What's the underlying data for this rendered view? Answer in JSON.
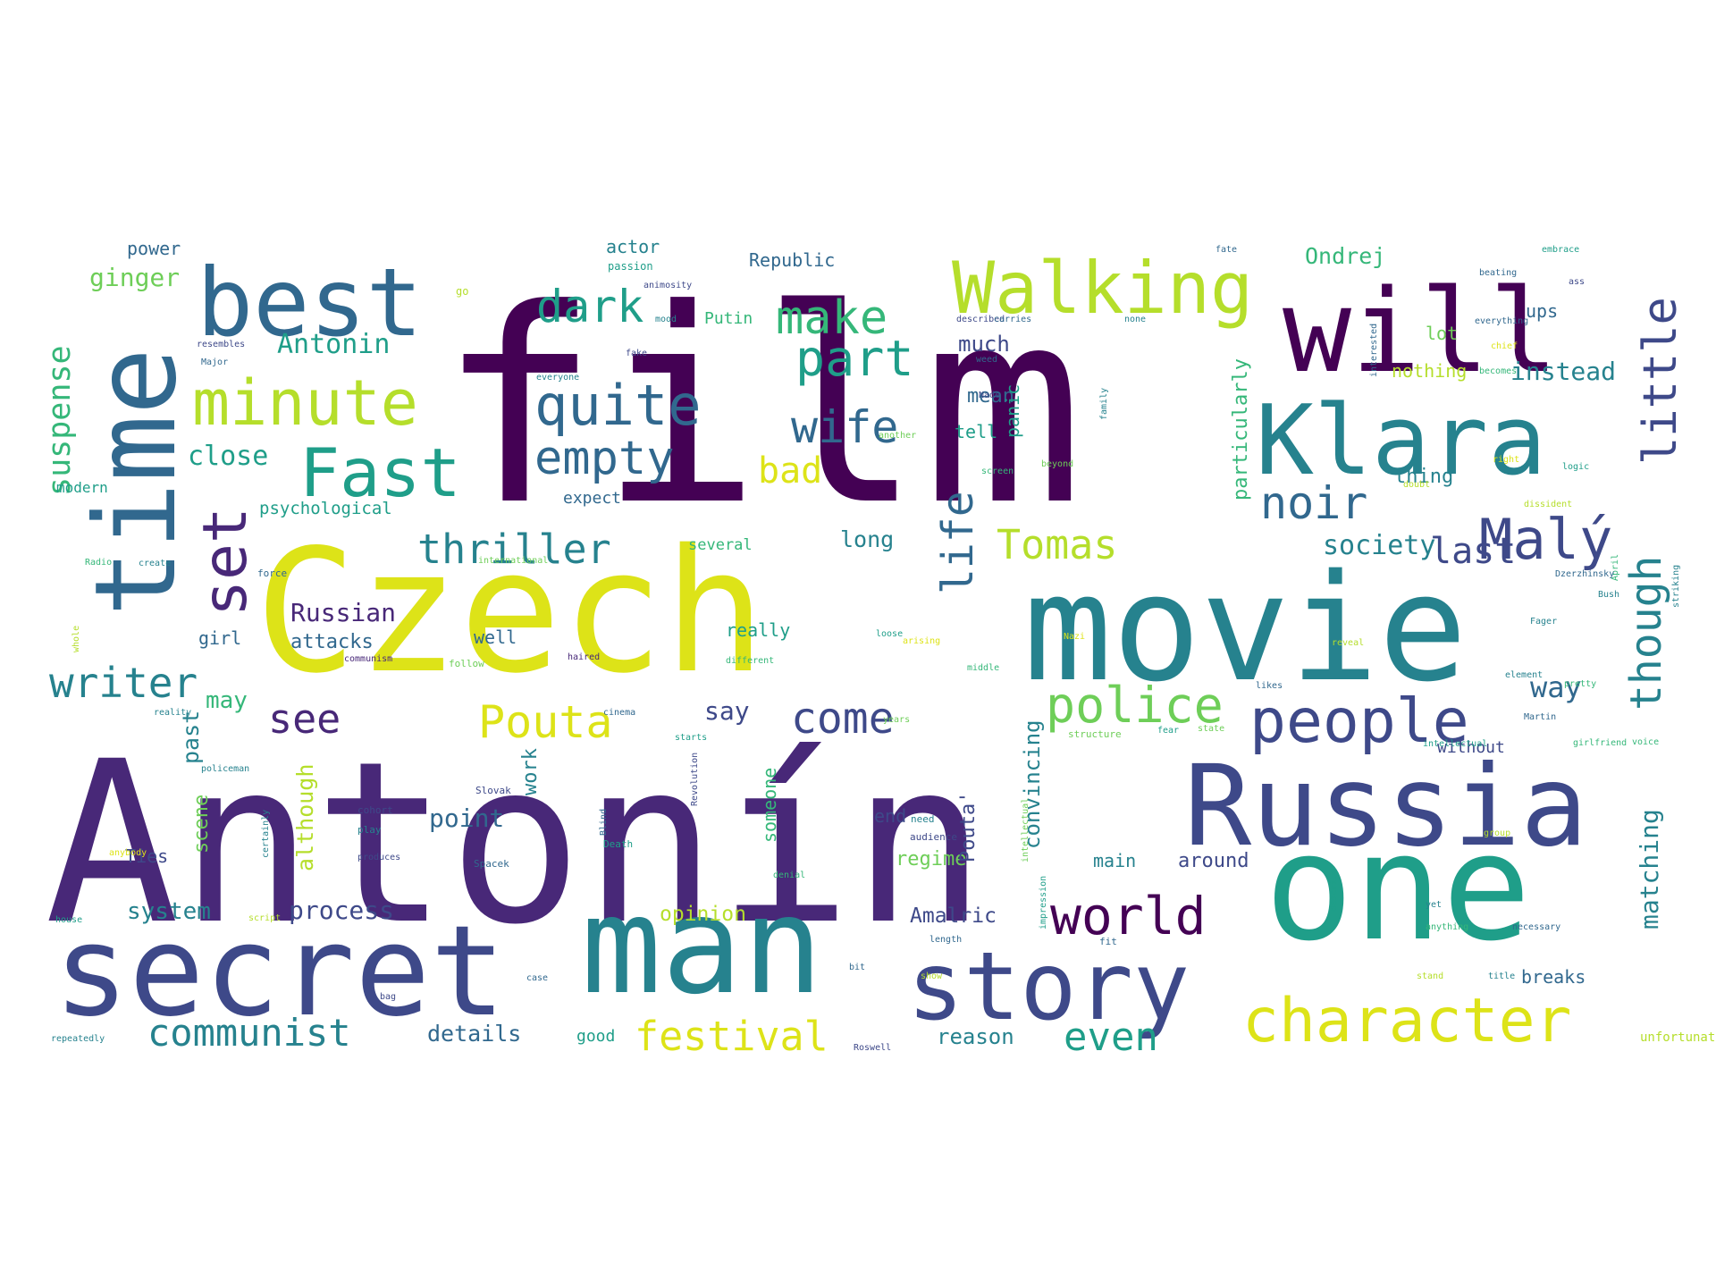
{
  "colors": {
    "background": "#ffffff",
    "palette": [
      "#440154",
      "#482878",
      "#3e4989",
      "#31688e",
      "#26828e",
      "#1f9e89",
      "#35b779",
      "#6ece58",
      "#b5de2b",
      "#dde318"
    ]
  },
  "words": [
    {
      "text": "film",
      "c": 0
    },
    {
      "text": "Antonín",
      "c": 1
    },
    {
      "text": "Czech",
      "c": 9
    },
    {
      "text": "movie",
      "c": 4
    },
    {
      "text": "man",
      "c": 4
    },
    {
      "text": "secret",
      "c": 2
    },
    {
      "text": "one",
      "c": 5
    },
    {
      "text": "Russia",
      "c": 2
    },
    {
      "text": "time",
      "c": 3
    },
    {
      "text": "will",
      "c": 0
    },
    {
      "text": "Klara",
      "c": 4
    },
    {
      "text": "best",
      "c": 3
    },
    {
      "text": "story",
      "c": 2
    },
    {
      "text": "character",
      "c": 9
    },
    {
      "text": "people",
      "c": 2
    },
    {
      "text": "Walking",
      "c": 8
    },
    {
      "text": "minute",
      "c": 8
    },
    {
      "text": "Fast",
      "c": 5
    },
    {
      "text": "Malý",
      "c": 2
    },
    {
      "text": "set",
      "c": 1
    },
    {
      "text": "police",
      "c": 7
    },
    {
      "text": "world",
      "c": 0
    },
    {
      "text": "quite",
      "c": 3
    },
    {
      "text": "empty",
      "c": 3
    },
    {
      "text": "part",
      "c": 5
    },
    {
      "text": "wife",
      "c": 3
    },
    {
      "text": "make",
      "c": 6
    },
    {
      "text": "dark",
      "c": 5
    },
    {
      "text": "noir",
      "c": 3
    },
    {
      "text": "little",
      "c": 2
    },
    {
      "text": "though",
      "c": 4
    },
    {
      "text": "thriller",
      "c": 4
    },
    {
      "text": "Tomas",
      "c": 8
    },
    {
      "text": "life",
      "c": 3
    },
    {
      "text": "Pouta",
      "c": 9
    },
    {
      "text": "writer",
      "c": 4
    },
    {
      "text": "come",
      "c": 2
    },
    {
      "text": "see",
      "c": 1
    },
    {
      "text": "festival",
      "c": 9
    },
    {
      "text": "communist",
      "c": 4
    },
    {
      "text": "even",
      "c": 5
    },
    {
      "text": "suspense",
      "c": 6
    },
    {
      "text": "last",
      "c": 2
    },
    {
      "text": "bad",
      "c": 9
    },
    {
      "text": "society",
      "c": 4
    },
    {
      "text": "Antonin",
      "c": 5
    },
    {
      "text": "ginger",
      "c": 7
    },
    {
      "text": "close",
      "c": 5
    },
    {
      "text": "Russian",
      "c": 1
    },
    {
      "text": "attacks",
      "c": 3
    },
    {
      "text": "process",
      "c": 2
    },
    {
      "text": "system",
      "c": 4
    },
    {
      "text": "details",
      "c": 3
    },
    {
      "text": "reason",
      "c": 4
    },
    {
      "text": "Amalric",
      "c": 2
    },
    {
      "text": "breaks",
      "c": 3
    },
    {
      "text": "matching",
      "c": 4
    },
    {
      "text": "convincing",
      "c": 4
    },
    {
      "text": "opinion",
      "c": 8
    },
    {
      "text": "instead",
      "c": 4
    },
    {
      "text": "Ondrej",
      "c": 6
    },
    {
      "text": "point",
      "c": 3
    },
    {
      "text": "say",
      "c": 2
    },
    {
      "text": "way",
      "c": 3
    },
    {
      "text": "Republic",
      "c": 3
    },
    {
      "text": "actor",
      "c": 4
    },
    {
      "text": "psychological",
      "c": 5
    },
    {
      "text": "power",
      "c": 3
    },
    {
      "text": "long",
      "c": 4
    },
    {
      "text": "much",
      "c": 2
    },
    {
      "text": "mean",
      "c": 3
    },
    {
      "text": "particularly",
      "c": 6
    },
    {
      "text": "modern",
      "c": 5
    },
    {
      "text": "expect",
      "c": 3
    },
    {
      "text": "several",
      "c": 6
    },
    {
      "text": "really",
      "c": 5
    },
    {
      "text": "girl",
      "c": 3
    },
    {
      "text": "may",
      "c": 6
    },
    {
      "text": "past",
      "c": 4
    },
    {
      "text": "scene",
      "c": 7
    },
    {
      "text": "although",
      "c": 8
    },
    {
      "text": "Ties",
      "c": 2
    },
    {
      "text": "end",
      "c": 2
    },
    {
      "text": "regime",
      "c": 7
    },
    {
      "text": "someone",
      "c": 6
    },
    {
      "text": "Pouta'",
      "c": 2
    },
    {
      "text": "main",
      "c": 4
    },
    {
      "text": "around",
      "c": 2
    },
    {
      "text": "lot",
      "c": 7
    },
    {
      "text": "ups",
      "c": 3
    },
    {
      "text": "nothing",
      "c": 8
    },
    {
      "text": "panic",
      "c": 5
    },
    {
      "text": "tell",
      "c": 5
    },
    {
      "text": "thing",
      "c": 4
    },
    {
      "text": "well",
      "c": 3
    },
    {
      "text": "good",
      "c": 5
    },
    {
      "text": "without",
      "c": 2
    },
    {
      "text": "Putin",
      "c": 6
    },
    {
      "text": "work",
      "c": 4
    },
    {
      "text": "structure",
      "c": 7
    },
    {
      "text": "go",
      "c": 8
    },
    {
      "text": "passion",
      "c": 5
    },
    {
      "text": "resembles",
      "c": 2
    },
    {
      "text": "Major",
      "c": 3
    },
    {
      "text": "everyone",
      "c": 4
    },
    {
      "text": "Radio",
      "c": 6
    },
    {
      "text": "create",
      "c": 4
    },
    {
      "text": "force",
      "c": 3
    },
    {
      "text": "communism",
      "c": 1
    },
    {
      "text": "haired",
      "c": 1
    },
    {
      "text": "follow",
      "c": 7
    },
    {
      "text": "different",
      "c": 6
    },
    {
      "text": "cinema",
      "c": 3
    },
    {
      "text": "starts",
      "c": 5
    },
    {
      "text": "Slovak",
      "c": 2
    },
    {
      "text": "cohort",
      "c": 2
    },
    {
      "text": "play",
      "c": 4
    },
    {
      "text": "produces",
      "c": 2
    },
    {
      "text": "Spacek",
      "c": 3
    },
    {
      "text": "Death",
      "c": 5
    },
    {
      "text": "Blind",
      "c": 3
    },
    {
      "text": "Revolution",
      "c": 2
    },
    {
      "text": "denial",
      "c": 6
    },
    {
      "text": "need",
      "c": 4
    },
    {
      "text": "audience",
      "c": 2
    },
    {
      "text": "certainly",
      "c": 4
    },
    {
      "text": "house",
      "c": 5
    },
    {
      "text": "stand",
      "c": 8
    },
    {
      "text": "repeatedly",
      "c": 4
    },
    {
      "text": "anybody",
      "c": 9
    },
    {
      "text": "script",
      "c": 8
    },
    {
      "text": "show",
      "c": 8
    },
    {
      "text": "bag",
      "c": 2
    },
    {
      "text": "bit",
      "c": 3
    },
    {
      "text": "case",
      "c": 3
    },
    {
      "text": "length",
      "c": 3
    },
    {
      "text": "impression",
      "c": 5
    },
    {
      "text": "fit",
      "c": 3
    },
    {
      "text": "title",
      "c": 4
    },
    {
      "text": "necessary",
      "c": 3
    },
    {
      "text": "describe",
      "c": 5
    },
    {
      "text": "anything",
      "c": 6
    },
    {
      "text": "unfortunately",
      "c": 8
    },
    {
      "text": "yet",
      "c": 4
    },
    {
      "text": "group",
      "c": 8
    },
    {
      "text": "voice",
      "c": 6
    },
    {
      "text": "Martin",
      "c": 3
    },
    {
      "text": "girlfriend",
      "c": 6
    },
    {
      "text": "intellectual",
      "c": 5
    },
    {
      "text": "element",
      "c": 4
    },
    {
      "text": "striking",
      "c": 4
    },
    {
      "text": "pretty",
      "c": 6
    },
    {
      "text": "Fager",
      "c": 4
    },
    {
      "text": "Bush",
      "c": 4
    },
    {
      "text": "April",
      "c": 6
    },
    {
      "text": "Dzerzhinsky",
      "c": 3
    },
    {
      "text": "dissident",
      "c": 8
    },
    {
      "text": "right",
      "c": 9
    },
    {
      "text": "logic",
      "c": 5
    },
    {
      "text": "becomes",
      "c": 6
    },
    {
      "text": "interested",
      "c": 3
    },
    {
      "text": "doubt",
      "c": 8
    },
    {
      "text": "family",
      "c": 4
    },
    {
      "text": "beyond",
      "c": 7
    },
    {
      "text": "screen",
      "c": 6
    },
    {
      "text": "another",
      "c": 7
    },
    {
      "text": "fate",
      "c": 3
    },
    {
      "text": "embrace",
      "c": 5
    },
    {
      "text": "beating",
      "c": 3
    },
    {
      "text": "ass",
      "c": 2
    },
    {
      "text": "everything",
      "c": 3
    },
    {
      "text": "described",
      "c": 2
    },
    {
      "text": "carries",
      "c": 3
    },
    {
      "text": "none",
      "c": 4
    },
    {
      "text": "weed",
      "c": 3
    },
    {
      "text": "Nade",
      "c": 2
    },
    {
      "text": "chief",
      "c": 9
    },
    {
      "text": "mood",
      "c": 4
    },
    {
      "text": "fake",
      "c": 2
    },
    {
      "text": "loose",
      "c": 5
    },
    {
      "text": "middle",
      "c": 6
    },
    {
      "text": "years",
      "c": 7
    },
    {
      "text": "policeman",
      "c": 4
    },
    {
      "text": "reality",
      "c": 4
    },
    {
      "text": "whole",
      "c": 8
    },
    {
      "text": "animosity",
      "c": 2
    },
    {
      "text": "international",
      "c": 7
    },
    {
      "text": "arising",
      "c": 9
    },
    {
      "text": "intellectual",
      "c": 7
    },
    {
      "text": "state",
      "c": 7
    },
    {
      "text": "likes",
      "c": 3
    },
    {
      "text": "fear",
      "c": 5
    },
    {
      "text": "Nazi",
      "c": 9
    },
    {
      "text": "reveal",
      "c": 8
    },
    {
      "text": "Roswell",
      "c": 2
    }
  ]
}
